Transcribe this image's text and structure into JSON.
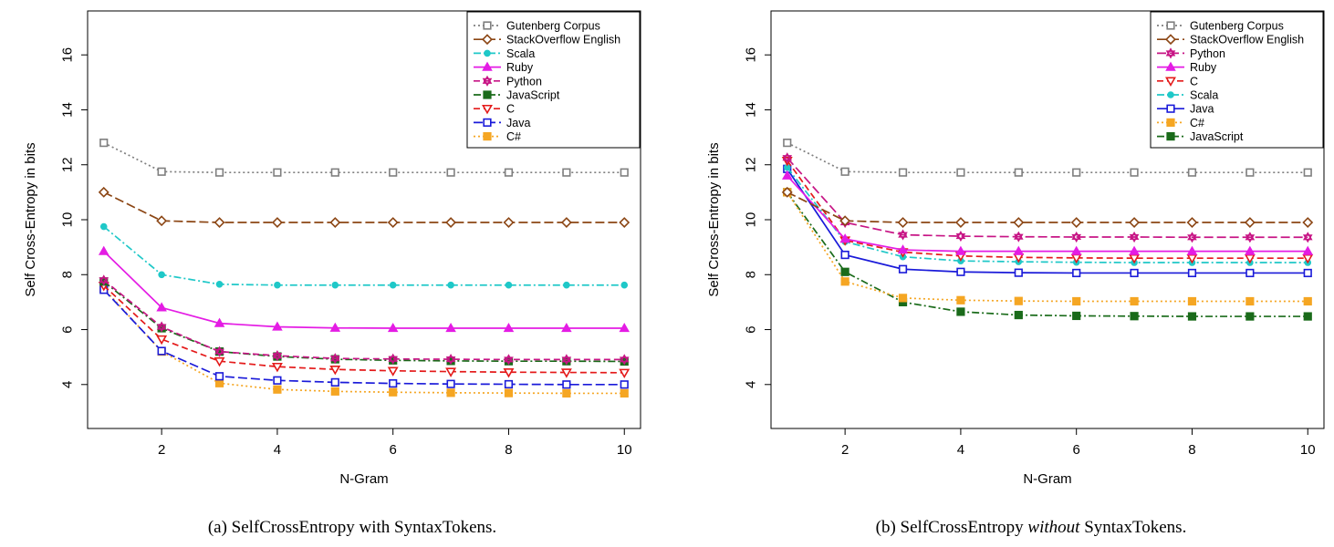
{
  "figure": {
    "caption_a": "(a) SelfCrossEntropy with SyntaxTokens.",
    "caption_b_prefix": "(b) SelfCrossEntropy ",
    "caption_b_italic": "without",
    "caption_b_suffix": " SyntaxTokens."
  },
  "chart_data": [
    {
      "type": "line",
      "xlabel": "N-Gram",
      "ylabel": "Self Cross-Entropy in bits",
      "x": [
        1,
        2,
        3,
        4,
        5,
        6,
        7,
        8,
        9,
        10
      ],
      "xticks": [
        2,
        4,
        6,
        8,
        10
      ],
      "yticks": [
        4,
        6,
        8,
        10,
        12,
        14,
        16
      ],
      "xlim": [
        0.72,
        10.28
      ],
      "ylim": [
        2.4,
        17.6
      ],
      "grid": false,
      "legend_position": "top-right",
      "series": [
        {
          "name": "Gutenberg Corpus",
          "color": "#7f7f7f",
          "dash": "dot",
          "marker": "square",
          "values": [
            12.8,
            11.75,
            11.72,
            11.72,
            11.72,
            11.72,
            11.72,
            11.72,
            11.72,
            11.72
          ]
        },
        {
          "name": "StackOverflow English",
          "color": "#8b4513",
          "dash": "longdash",
          "marker": "diamond",
          "values": [
            11.0,
            9.96,
            9.9,
            9.9,
            9.9,
            9.9,
            9.9,
            9.9,
            9.9,
            9.9
          ]
        },
        {
          "name": "Scala",
          "color": "#1fc8c8",
          "dash": "dashdot",
          "marker": "circle",
          "values": [
            9.75,
            8.0,
            7.65,
            7.62,
            7.62,
            7.62,
            7.62,
            7.62,
            7.62,
            7.62
          ]
        },
        {
          "name": "Ruby",
          "color": "#e41ce4",
          "dash": "solid",
          "marker": "triangle",
          "values": [
            8.85,
            6.8,
            6.23,
            6.1,
            6.06,
            6.05,
            6.05,
            6.05,
            6.05,
            6.05
          ]
        },
        {
          "name": "Python",
          "color": "#c71585",
          "dash": "dash",
          "marker": "star",
          "values": [
            7.8,
            6.1,
            5.2,
            5.05,
            4.95,
            4.93,
            4.92,
            4.91,
            4.91,
            4.91
          ]
        },
        {
          "name": "JavaScript",
          "color": "#1a6b1a",
          "dash": "dashdot",
          "marker": "filledsquare",
          "values": [
            7.75,
            6.05,
            5.2,
            5.02,
            4.92,
            4.88,
            4.86,
            4.85,
            4.85,
            4.84
          ]
        },
        {
          "name": "C",
          "color": "#e41a1a",
          "dash": "dash",
          "marker": "invtriangle",
          "values": [
            7.6,
            5.65,
            4.85,
            4.65,
            4.55,
            4.5,
            4.47,
            4.45,
            4.44,
            4.43
          ]
        },
        {
          "name": "Java",
          "color": "#1a1ad9",
          "dash": "longdash",
          "marker": "square",
          "values": [
            7.45,
            5.22,
            4.3,
            4.15,
            4.08,
            4.04,
            4.02,
            4.01,
            4.0,
            4.0
          ]
        },
        {
          "name": "C#",
          "color": "#f5a623",
          "dash": "dot",
          "marker": "filledsquare",
          "values": [
            7.5,
            5.2,
            4.05,
            3.82,
            3.75,
            3.72,
            3.7,
            3.69,
            3.68,
            3.68
          ]
        }
      ]
    },
    {
      "type": "line",
      "xlabel": "N-Gram",
      "ylabel": "Self Cross-Entropy in bits",
      "x": [
        1,
        2,
        3,
        4,
        5,
        6,
        7,
        8,
        9,
        10
      ],
      "xticks": [
        2,
        4,
        6,
        8,
        10
      ],
      "yticks": [
        4,
        6,
        8,
        10,
        12,
        14,
        16
      ],
      "xlim": [
        0.72,
        10.28
      ],
      "ylim": [
        2.4,
        17.6
      ],
      "grid": false,
      "legend_position": "top-right",
      "series": [
        {
          "name": "Gutenberg Corpus",
          "color": "#7f7f7f",
          "dash": "dot",
          "marker": "square",
          "values": [
            12.8,
            11.75,
            11.72,
            11.72,
            11.72,
            11.72,
            11.72,
            11.72,
            11.72,
            11.72
          ]
        },
        {
          "name": "StackOverflow English",
          "color": "#8b4513",
          "dash": "longdash",
          "marker": "diamond",
          "values": [
            11.0,
            9.96,
            9.9,
            9.9,
            9.9,
            9.9,
            9.9,
            9.9,
            9.9,
            9.9
          ]
        },
        {
          "name": "Python",
          "color": "#c71585",
          "dash": "longdash",
          "marker": "star",
          "values": [
            12.25,
            9.9,
            9.45,
            9.4,
            9.38,
            9.37,
            9.37,
            9.36,
            9.36,
            9.36
          ]
        },
        {
          "name": "Ruby",
          "color": "#e41ce4",
          "dash": "solid",
          "marker": "triangle",
          "values": [
            11.6,
            9.3,
            8.9,
            8.85,
            8.85,
            8.85,
            8.85,
            8.85,
            8.85,
            8.85
          ]
        },
        {
          "name": "C",
          "color": "#e41a1a",
          "dash": "dash",
          "marker": "invtriangle",
          "values": [
            12.15,
            9.25,
            8.82,
            8.68,
            8.63,
            8.61,
            8.6,
            8.6,
            8.6,
            8.6
          ]
        },
        {
          "name": "Scala",
          "color": "#1fc8c8",
          "dash": "dashdot",
          "marker": "circle",
          "values": [
            11.9,
            9.2,
            8.65,
            8.5,
            8.47,
            8.45,
            8.44,
            8.44,
            8.44,
            8.44
          ]
        },
        {
          "name": "Java",
          "color": "#1a1ad9",
          "dash": "solid",
          "marker": "square",
          "values": [
            11.85,
            8.72,
            8.2,
            8.1,
            8.07,
            8.06,
            8.06,
            8.06,
            8.06,
            8.06
          ]
        },
        {
          "name": "C#",
          "color": "#f5a623",
          "dash": "dot",
          "marker": "filledsquare",
          "values": [
            11.0,
            7.75,
            7.15,
            7.07,
            7.04,
            7.03,
            7.03,
            7.03,
            7.03,
            7.03
          ]
        },
        {
          "name": "JavaScript",
          "color": "#1a6b1a",
          "dash": "dashdot",
          "marker": "filledsquare",
          "values": [
            11.0,
            8.1,
            7.0,
            6.65,
            6.53,
            6.5,
            6.49,
            6.48,
            6.48,
            6.48
          ]
        }
      ]
    }
  ]
}
